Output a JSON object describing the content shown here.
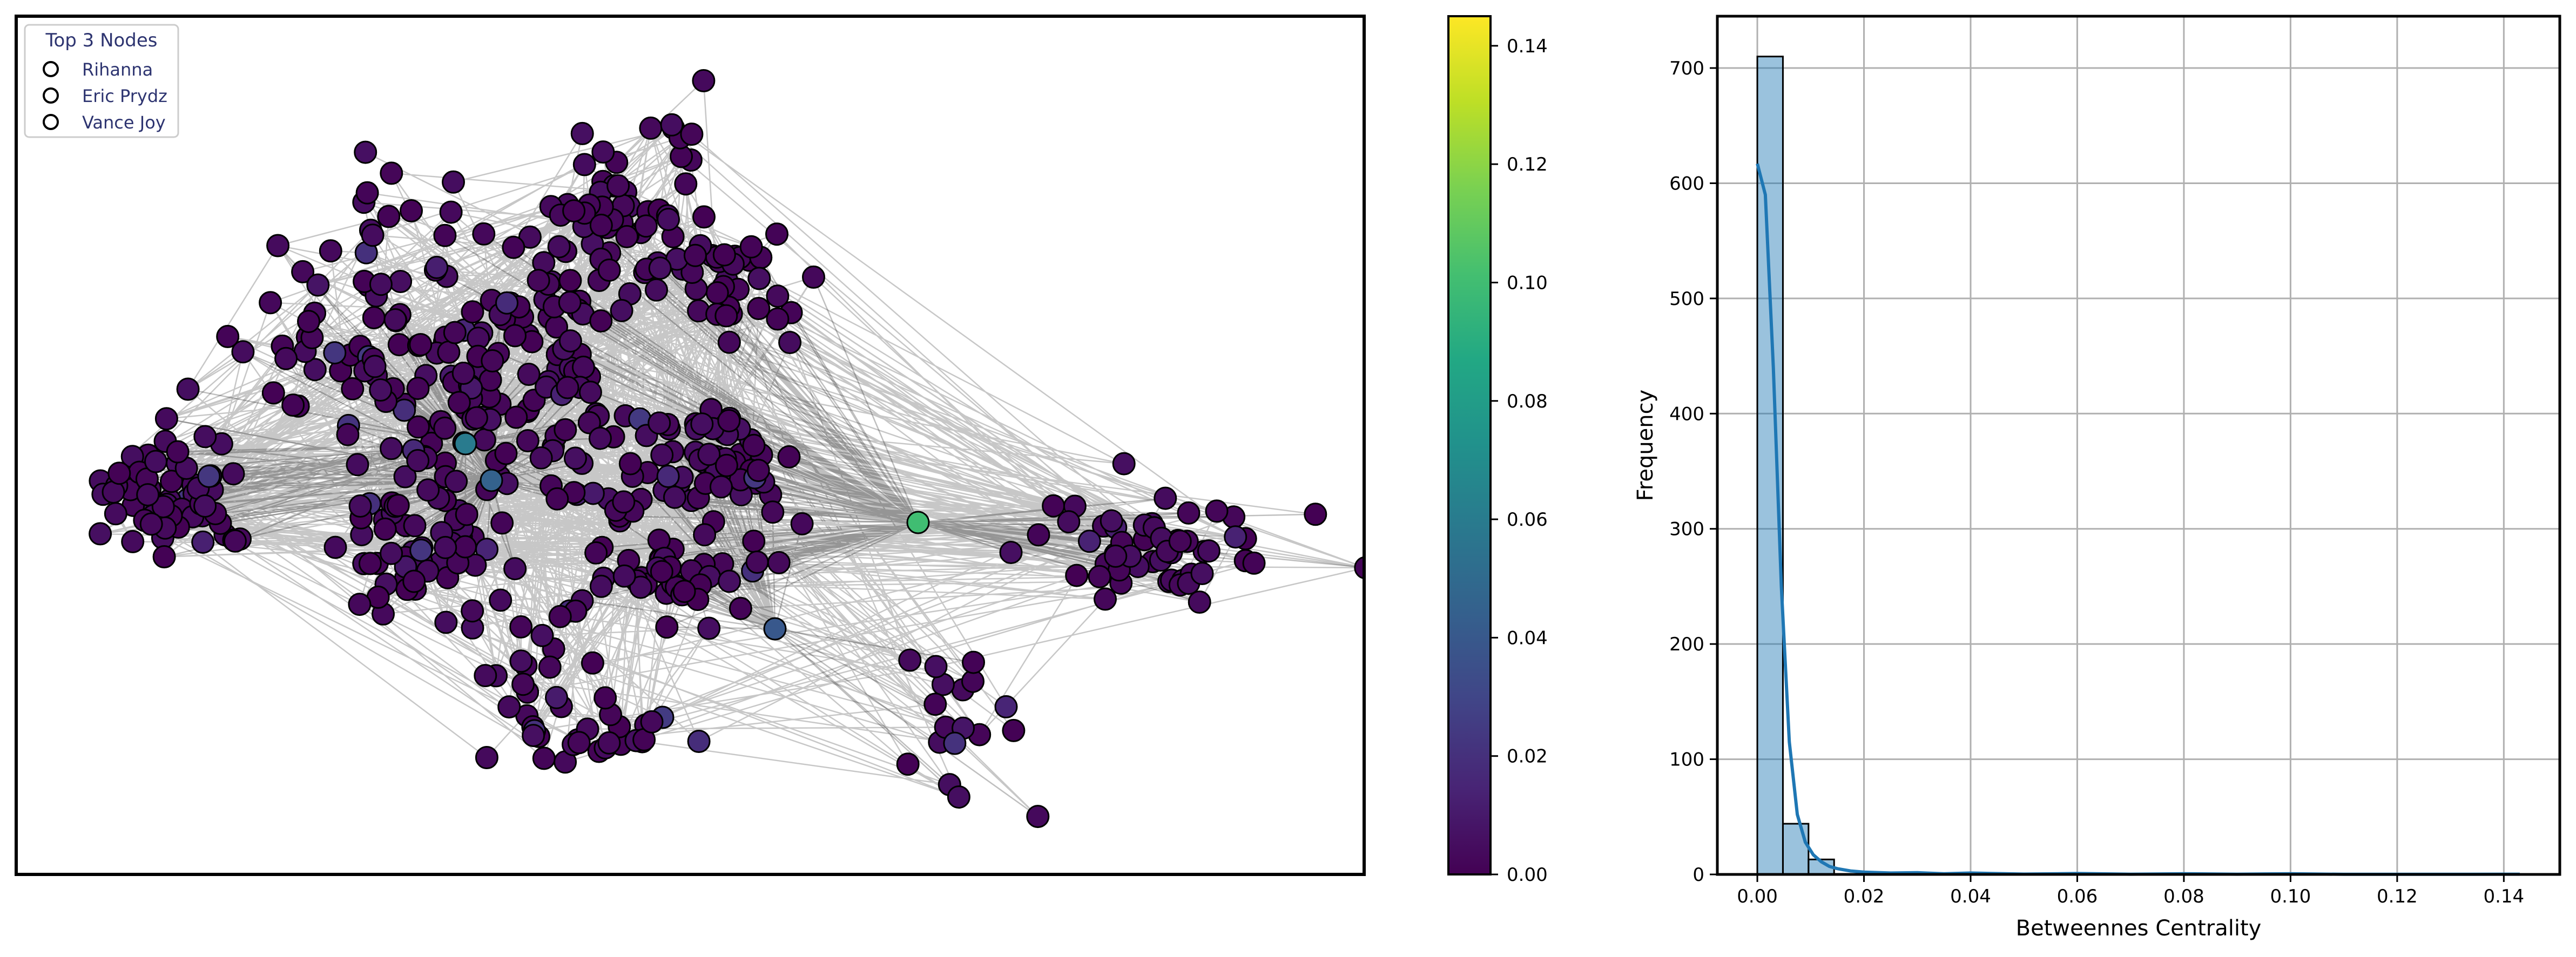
{
  "chart_data": [
    {
      "type": "network",
      "legend": {
        "title": "Top 3 Nodes",
        "position": "top-left",
        "entries": [
          "Rihanna",
          "Eric Prydz",
          "Vance Joy"
        ]
      },
      "highlight_nodes": [
        {
          "betweenness": 0.1
        },
        {
          "betweenness": 0.06
        },
        {
          "betweenness": 0.045
        },
        {
          "betweenness": 0.04
        }
      ],
      "colorbar": {
        "colormap": "viridis",
        "range": [
          0.0,
          0.145
        ],
        "ticks": [
          "0.00",
          "0.02",
          "0.04",
          "0.06",
          "0.08",
          "0.10",
          "0.12",
          "0.14"
        ],
        "tick_values": [
          0.0,
          0.02,
          0.04,
          0.06,
          0.08,
          0.1,
          0.12,
          0.14
        ]
      }
    },
    {
      "type": "bar",
      "xlabel": "Betweennes Centrality",
      "ylabel": "Frequency",
      "xlim": [
        -0.0075,
        0.1505
      ],
      "ylim": [
        0,
        745
      ],
      "grid": true,
      "x_ticks": [
        "0.00",
        "0.02",
        "0.04",
        "0.06",
        "0.08",
        "0.10",
        "0.12",
        "0.14"
      ],
      "x_tick_values": [
        0.0,
        0.02,
        0.04,
        0.06,
        0.08,
        0.1,
        0.12,
        0.14
      ],
      "y_ticks": [
        "0",
        "100",
        "200",
        "300",
        "400",
        "500",
        "600",
        "700"
      ],
      "y_tick_values": [
        0,
        100,
        200,
        300,
        400,
        500,
        600,
        700
      ],
      "bin_width": 0.0048,
      "bin_starts": [
        0.0,
        0.0048,
        0.0096
      ],
      "values": [
        710,
        44,
        13
      ],
      "kde": {
        "x": [
          0.0,
          0.0015,
          0.003,
          0.0045,
          0.006,
          0.0075,
          0.009,
          0.0105,
          0.012,
          0.0135,
          0.015,
          0.0175,
          0.02,
          0.025,
          0.03,
          0.035,
          0.04,
          0.05,
          0.06,
          0.07,
          0.08,
          0.09,
          0.1,
          0.11,
          0.12,
          0.13,
          0.14,
          0.143
        ],
        "y": [
          617,
          590,
          440,
          250,
          115,
          52,
          28,
          17,
          11,
          7,
          5,
          3,
          2,
          1.2,
          1.5,
          0.6,
          1.2,
          0.3,
          0.8,
          0.2,
          0.6,
          0.2,
          0.6,
          0.1,
          0.1,
          0.1,
          0.2,
          0.2
        ]
      }
    }
  ]
}
